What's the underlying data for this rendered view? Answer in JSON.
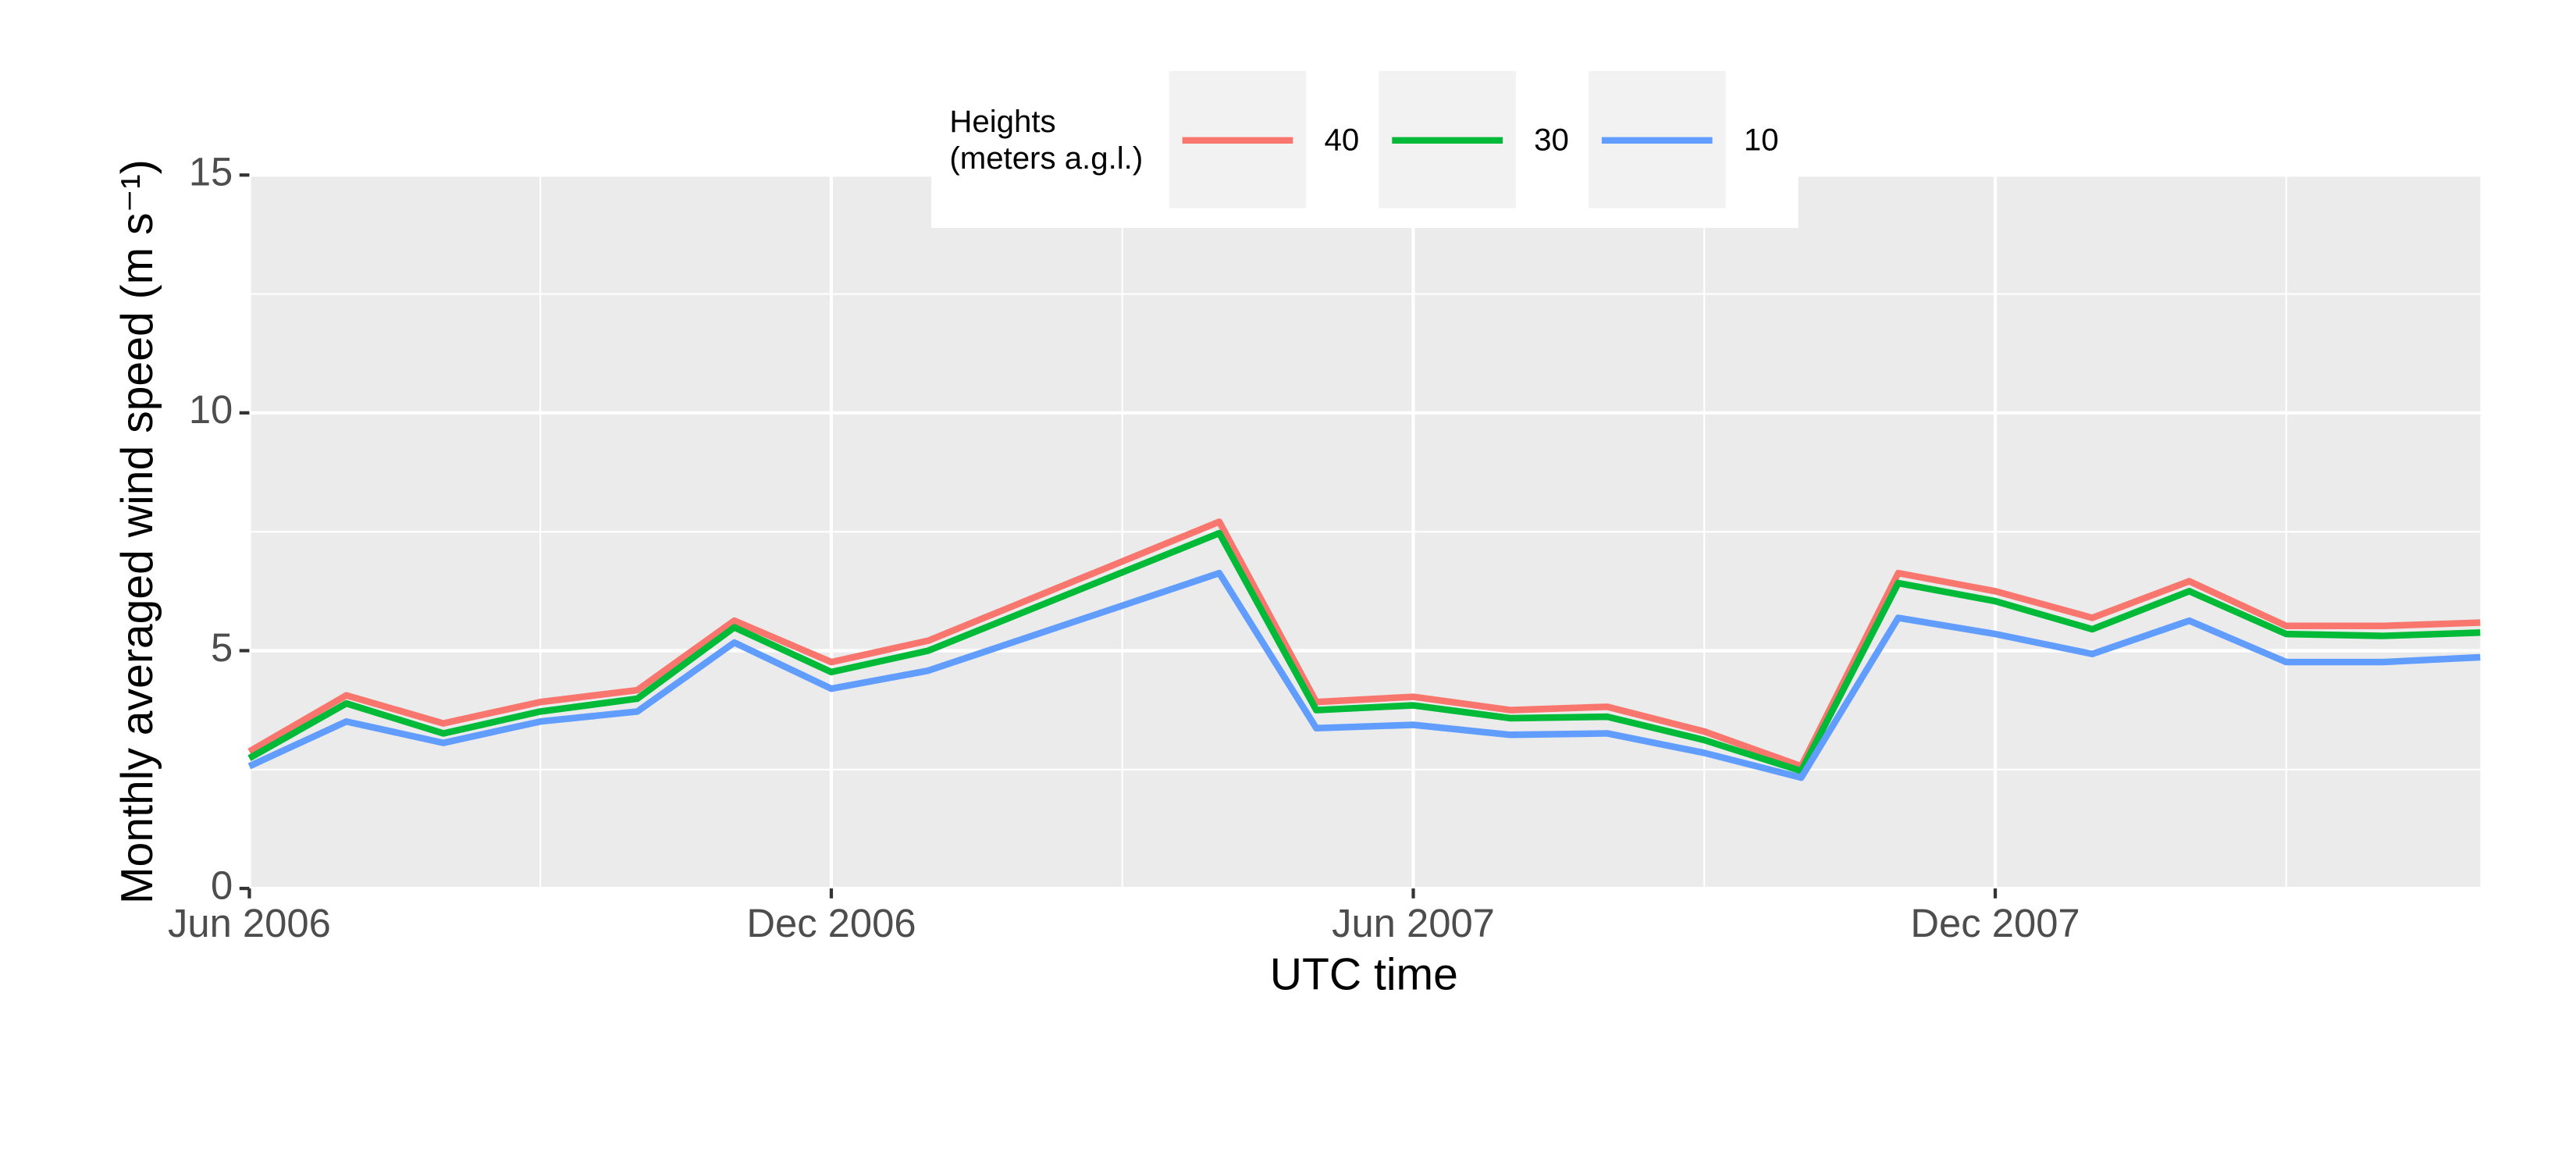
{
  "chart_data": {
    "type": "line",
    "x_label": "UTC time",
    "y_label": "Monthly averaged wind speed (m s⁻¹)",
    "legend_title": [
      "Heights",
      "(meters a.g.l.)"
    ],
    "legend_position": "top",
    "grid": true,
    "x": [
      "2006-06",
      "2006-07",
      "2006-08",
      "2006-09",
      "2006-10",
      "2006-11",
      "2006-12",
      "2007-01",
      "2007-04",
      "2007-05",
      "2007-06",
      "2007-07",
      "2007-08",
      "2007-09",
      "2007-10",
      "2007-11",
      "2007-12",
      "2008-01",
      "2008-02",
      "2008-03",
      "2008-04",
      "2008-05"
    ],
    "xlim": [
      "2006-06",
      "2008-05"
    ],
    "xticks": [
      {
        "value": "2006-06",
        "label": "Jun 2006"
      },
      {
        "value": "2006-12",
        "label": "Dec 2006"
      },
      {
        "value": "2007-06",
        "label": "Jun 2007"
      },
      {
        "value": "2007-12",
        "label": "Dec 2007"
      }
    ],
    "x_minor_ticks": [
      "2006-09",
      "2007-03",
      "2007-09",
      "2008-03"
    ],
    "ylim": [
      0,
      15
    ],
    "yticks": [
      0,
      5,
      10,
      15
    ],
    "y_minor_ticks": [
      2.5,
      7.5,
      12.5
    ],
    "series": [
      {
        "name": "40",
        "color": "#F8766D",
        "values": [
          2.88,
          4.06,
          3.47,
          3.92,
          4.17,
          5.63,
          4.76,
          5.21,
          7.71,
          3.92,
          4.03,
          3.75,
          3.82,
          3.3,
          2.57,
          6.63,
          6.25,
          5.69,
          6.46,
          5.52,
          5.52,
          5.59
        ]
      },
      {
        "name": "30",
        "color": "#00BA38",
        "values": [
          2.74,
          3.89,
          3.26,
          3.72,
          3.99,
          5.49,
          4.55,
          5.0,
          7.47,
          3.75,
          3.85,
          3.58,
          3.61,
          3.12,
          2.47,
          6.42,
          6.04,
          5.45,
          6.25,
          5.35,
          5.31,
          5.38
        ]
      },
      {
        "name": "10",
        "color": "#619CFF",
        "values": [
          2.57,
          3.51,
          3.06,
          3.51,
          3.72,
          5.17,
          4.2,
          4.58,
          6.63,
          3.37,
          3.44,
          3.23,
          3.26,
          2.85,
          2.33,
          5.69,
          5.35,
          4.93,
          5.63,
          4.76,
          4.76,
          4.86
        ]
      }
    ]
  }
}
